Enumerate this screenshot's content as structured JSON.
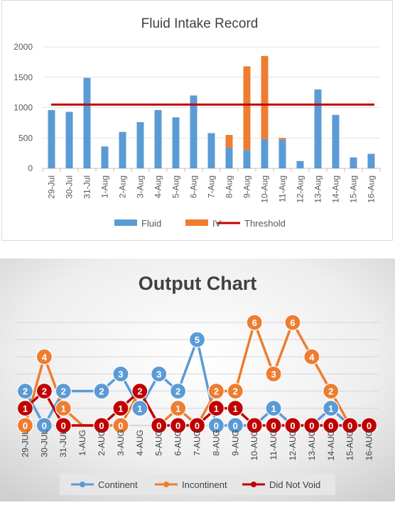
{
  "chart_data": [
    {
      "type": "bar",
      "stacked": true,
      "title": "Fluid Intake Record",
      "categories": [
        "29-Jul",
        "30-Jul",
        "31-Jul",
        "1-Aug",
        "2-Aug",
        "3-Aug",
        "4-Aug",
        "5-Aug",
        "6-Aug",
        "7-Aug",
        "8-Aug",
        "9-Aug",
        "10-Aug",
        "11-Aug",
        "12-Aug",
        "13-Aug",
        "14-Aug",
        "15-Aug",
        "16-Aug"
      ],
      "series": [
        {
          "name": "Fluid",
          "color": "#5b9bd5",
          "values": [
            960,
            930,
            1490,
            360,
            600,
            760,
            960,
            840,
            1200,
            580,
            340,
            300,
            480,
            470,
            120,
            1300,
            880,
            180,
            240
          ]
        },
        {
          "name": "IV",
          "color": "#ed7d31",
          "values": [
            0,
            0,
            0,
            0,
            0,
            0,
            0,
            0,
            0,
            0,
            210,
            1380,
            1370,
            30,
            0,
            0,
            0,
            0,
            0
          ]
        }
      ],
      "threshold": {
        "name": "Threshold",
        "color": "#c00000",
        "value": 1050
      },
      "ylim": [
        0,
        2000
      ],
      "yticks": [
        "0",
        "500",
        "1000",
        "1500",
        "2000"
      ],
      "legend": "bottom"
    },
    {
      "type": "line",
      "title": "Output Chart",
      "categories": [
        "29-JUL",
        "30-JUL",
        "31-JUL",
        "1-AUG",
        "2-AUG",
        "3-AUG",
        "4-AUG",
        "5-AUG",
        "6-AUG",
        "7-AUG",
        "8-AUG",
        "9-AUG",
        "10-AUG",
        "11-AUG",
        "12-AUG",
        "13-AUG",
        "14-AUG",
        "15-AUG",
        "16-AUG"
      ],
      "series": [
        {
          "name": "Continent",
          "color": "#5b9bd5",
          "values": [
            2,
            0,
            2,
            2,
            2,
            3,
            1,
            3,
            2,
            5,
            0,
            0,
            0,
            1,
            0,
            0,
            1,
            0,
            0
          ],
          "labelled": [
            true,
            true,
            true,
            false,
            true,
            true,
            true,
            true,
            true,
            true,
            true,
            true,
            false,
            true,
            false,
            false,
            true,
            false,
            false
          ]
        },
        {
          "name": "Incontinent",
          "color": "#ed7d31",
          "values": [
            0,
            4,
            1,
            0,
            0,
            0,
            2,
            0,
            1,
            0,
            2,
            2,
            6,
            3,
            6,
            4,
            2,
            0,
            0
          ],
          "labelled": [
            true,
            true,
            true,
            false,
            false,
            true,
            false,
            false,
            true,
            false,
            true,
            true,
            true,
            true,
            true,
            true,
            true,
            false,
            false
          ]
        },
        {
          "name": "Did Not Void",
          "color": "#c00000",
          "values": [
            1,
            2,
            0,
            0,
            0,
            1,
            2,
            0,
            0,
            0,
            1,
            1,
            0,
            0,
            0,
            0,
            0,
            0,
            0
          ],
          "labelled": [
            true,
            true,
            true,
            false,
            true,
            true,
            true,
            true,
            true,
            true,
            true,
            true,
            true,
            true,
            true,
            true,
            true,
            true,
            true
          ]
        }
      ],
      "ylim": [
        0,
        6
      ],
      "legend": "bottom"
    }
  ]
}
